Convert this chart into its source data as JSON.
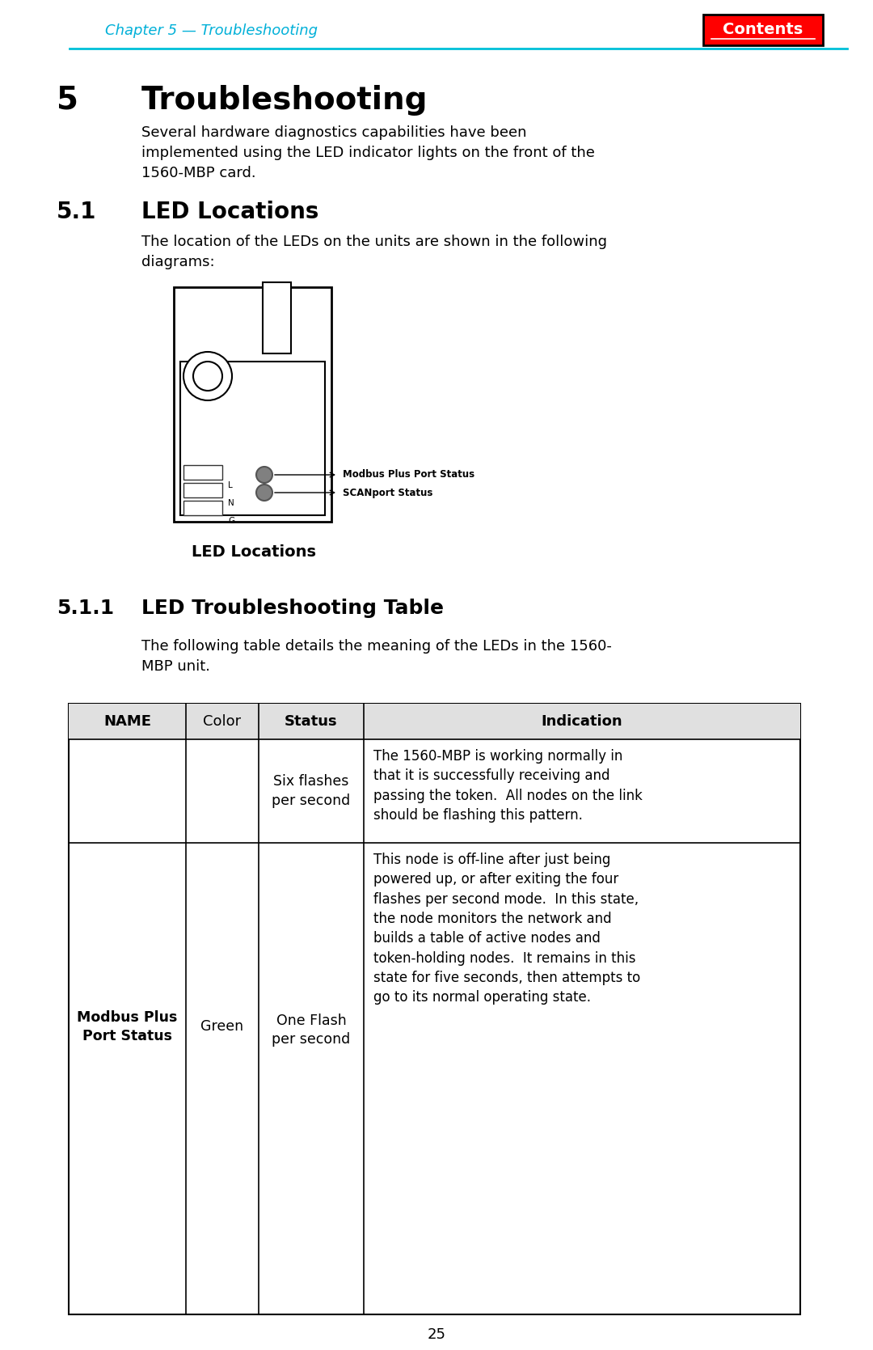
{
  "page_bg": "#ffffff",
  "header_text": "Chapter 5 — Troubleshooting",
  "header_color": "#00b0d8",
  "contents_btn_text": "Contents",
  "contents_btn_bg": "#ff0000",
  "contents_btn_border": "#000000",
  "contents_text_color": "#ffffff",
  "header_line_color": "#00c0d8",
  "section5_num": "5",
  "section5_title": "Troubleshooting",
  "section5_body": "Several hardware diagnostics capabilities have been\nimplemented using the LED indicator lights on the front of the\n1560-MBP card.",
  "section51_num": "5.1",
  "section51_title": "LED Locations",
  "section51_body": "The location of the LEDs on the units are shown in the following\ndiagrams:",
  "diagram_caption": "LED Locations",
  "led1_label": "Modbus Plus Port Status",
  "led2_label": "SCANport Status",
  "section511_num": "5.1.1",
  "section511_title": "LED Troubleshooting Table",
  "section511_body": "The following table details the meaning of the LEDs in the 1560-\nMBP unit.",
  "table_headers": [
    "NAME",
    "Color",
    "Status",
    "Indication"
  ],
  "table_col1_name": "Modbus Plus\nPort Status",
  "table_col2_color": "Green",
  "table_row1_status": "Six flashes\nper second",
  "table_row1_indication": "The 1560-MBP is working normally in\nthat it is successfully receiving and\npassing the token.  All nodes on the link\nshould be flashing this pattern.",
  "table_row2_status": "One Flash\nper second",
  "table_row2_indication": "This node is off-line after just being\npowered up, or after exiting the four\nflashes per second mode.  In this state,\nthe node monitors the network and\nbuilds a table of active nodes and\ntoken-holding nodes.  It remains in this\nstate for five seconds, then attempts to\ngo to its normal operating state.",
  "footer_page": "25",
  "text_color": "#000000",
  "diagram_led_color": "#808080"
}
